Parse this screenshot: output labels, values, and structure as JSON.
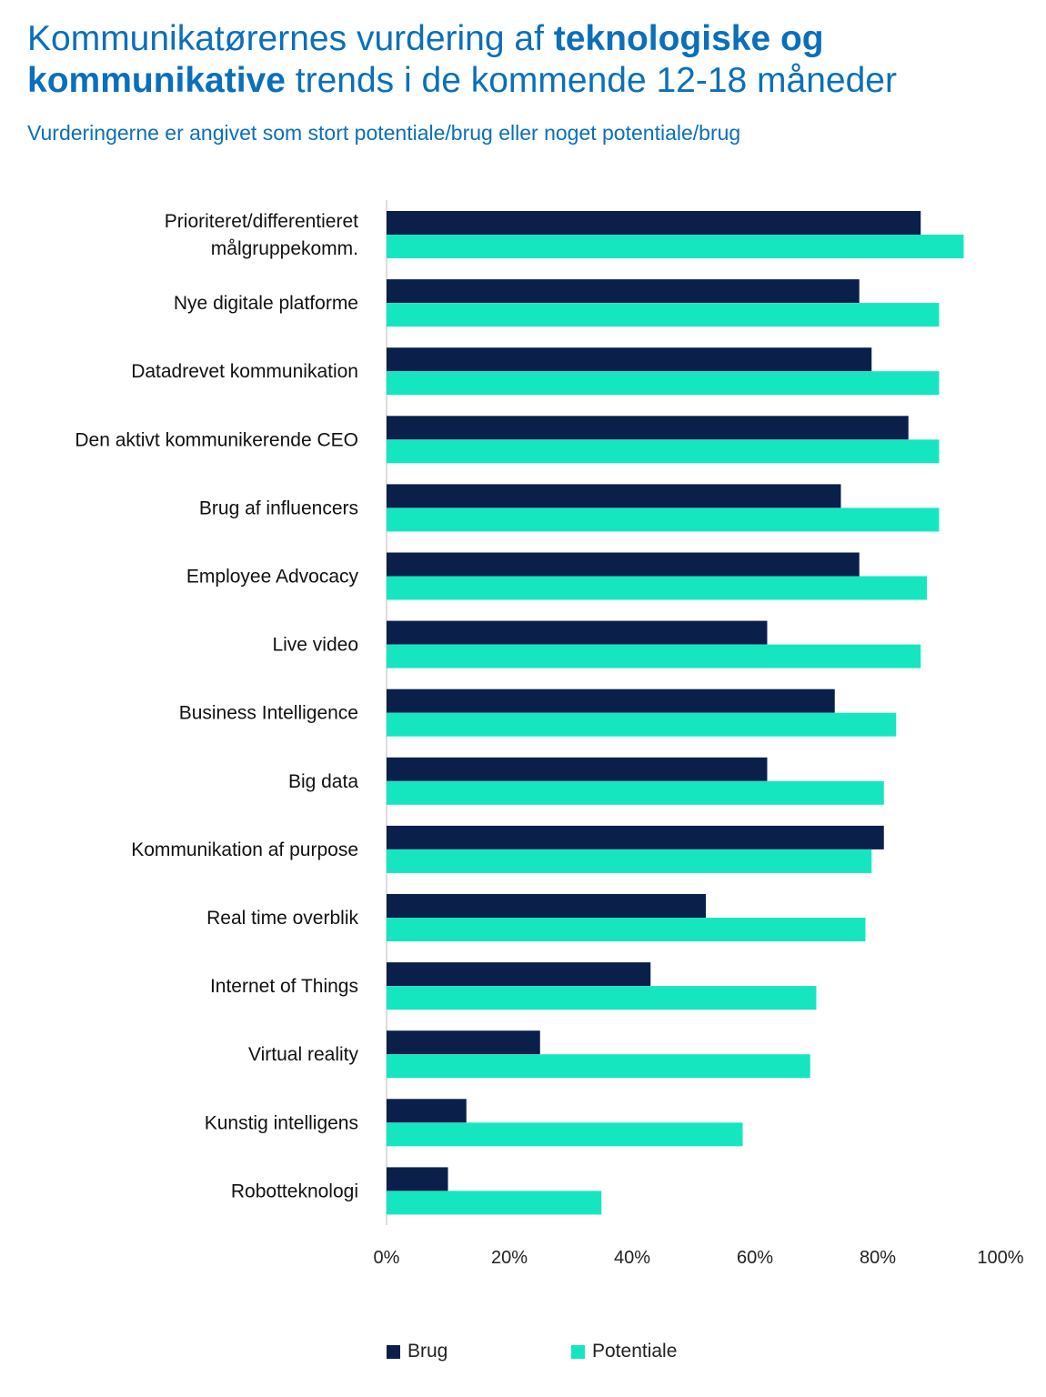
{
  "title": {
    "part1": "Kommunikatørernes vurdering af ",
    "bold1": "teknologiske og",
    "bold2": "kommunikative",
    "part2": " trends i de kommende 12-18 måneder"
  },
  "subtitle": "Vurderingerne er angivet som stort potentiale/brug eller noget potentiale/brug",
  "colors": {
    "brug": "#0b1f4b",
    "potentiale": "#16e6c0"
  },
  "chart_data": {
    "type": "bar",
    "orientation": "horizontal",
    "categories": [
      [
        "Prioriteret/differentieret",
        "målgruppekomm."
      ],
      [
        "Nye digitale platforme"
      ],
      [
        "Datadrevet kommunikation"
      ],
      [
        "Den aktivt kommunikerende CEO"
      ],
      [
        "Brug af influencers"
      ],
      [
        "Employee Advocacy"
      ],
      [
        "Live video"
      ],
      [
        "Business Intelligence"
      ],
      [
        "Big data"
      ],
      [
        "Kommunikation af purpose"
      ],
      [
        "Real time overblik"
      ],
      [
        "Internet of Things"
      ],
      [
        "Virtual reality"
      ],
      [
        "Kunstig intelligens"
      ],
      [
        "Robotteknologi"
      ]
    ],
    "series": [
      {
        "name": "Brug",
        "values": [
          87,
          77,
          79,
          85,
          74,
          77,
          62,
          73,
          62,
          81,
          52,
          43,
          25,
          13,
          10
        ]
      },
      {
        "name": "Potentiale",
        "values": [
          94,
          90,
          90,
          90,
          90,
          88,
          87,
          83,
          81,
          79,
          78,
          70,
          69,
          58,
          35
        ]
      }
    ],
    "xlim": [
      0,
      100
    ],
    "xticks": [
      "0%",
      "20%",
      "40%",
      "60%",
      "80%",
      "100%"
    ],
    "grid": false,
    "legend_position": "bottom"
  }
}
